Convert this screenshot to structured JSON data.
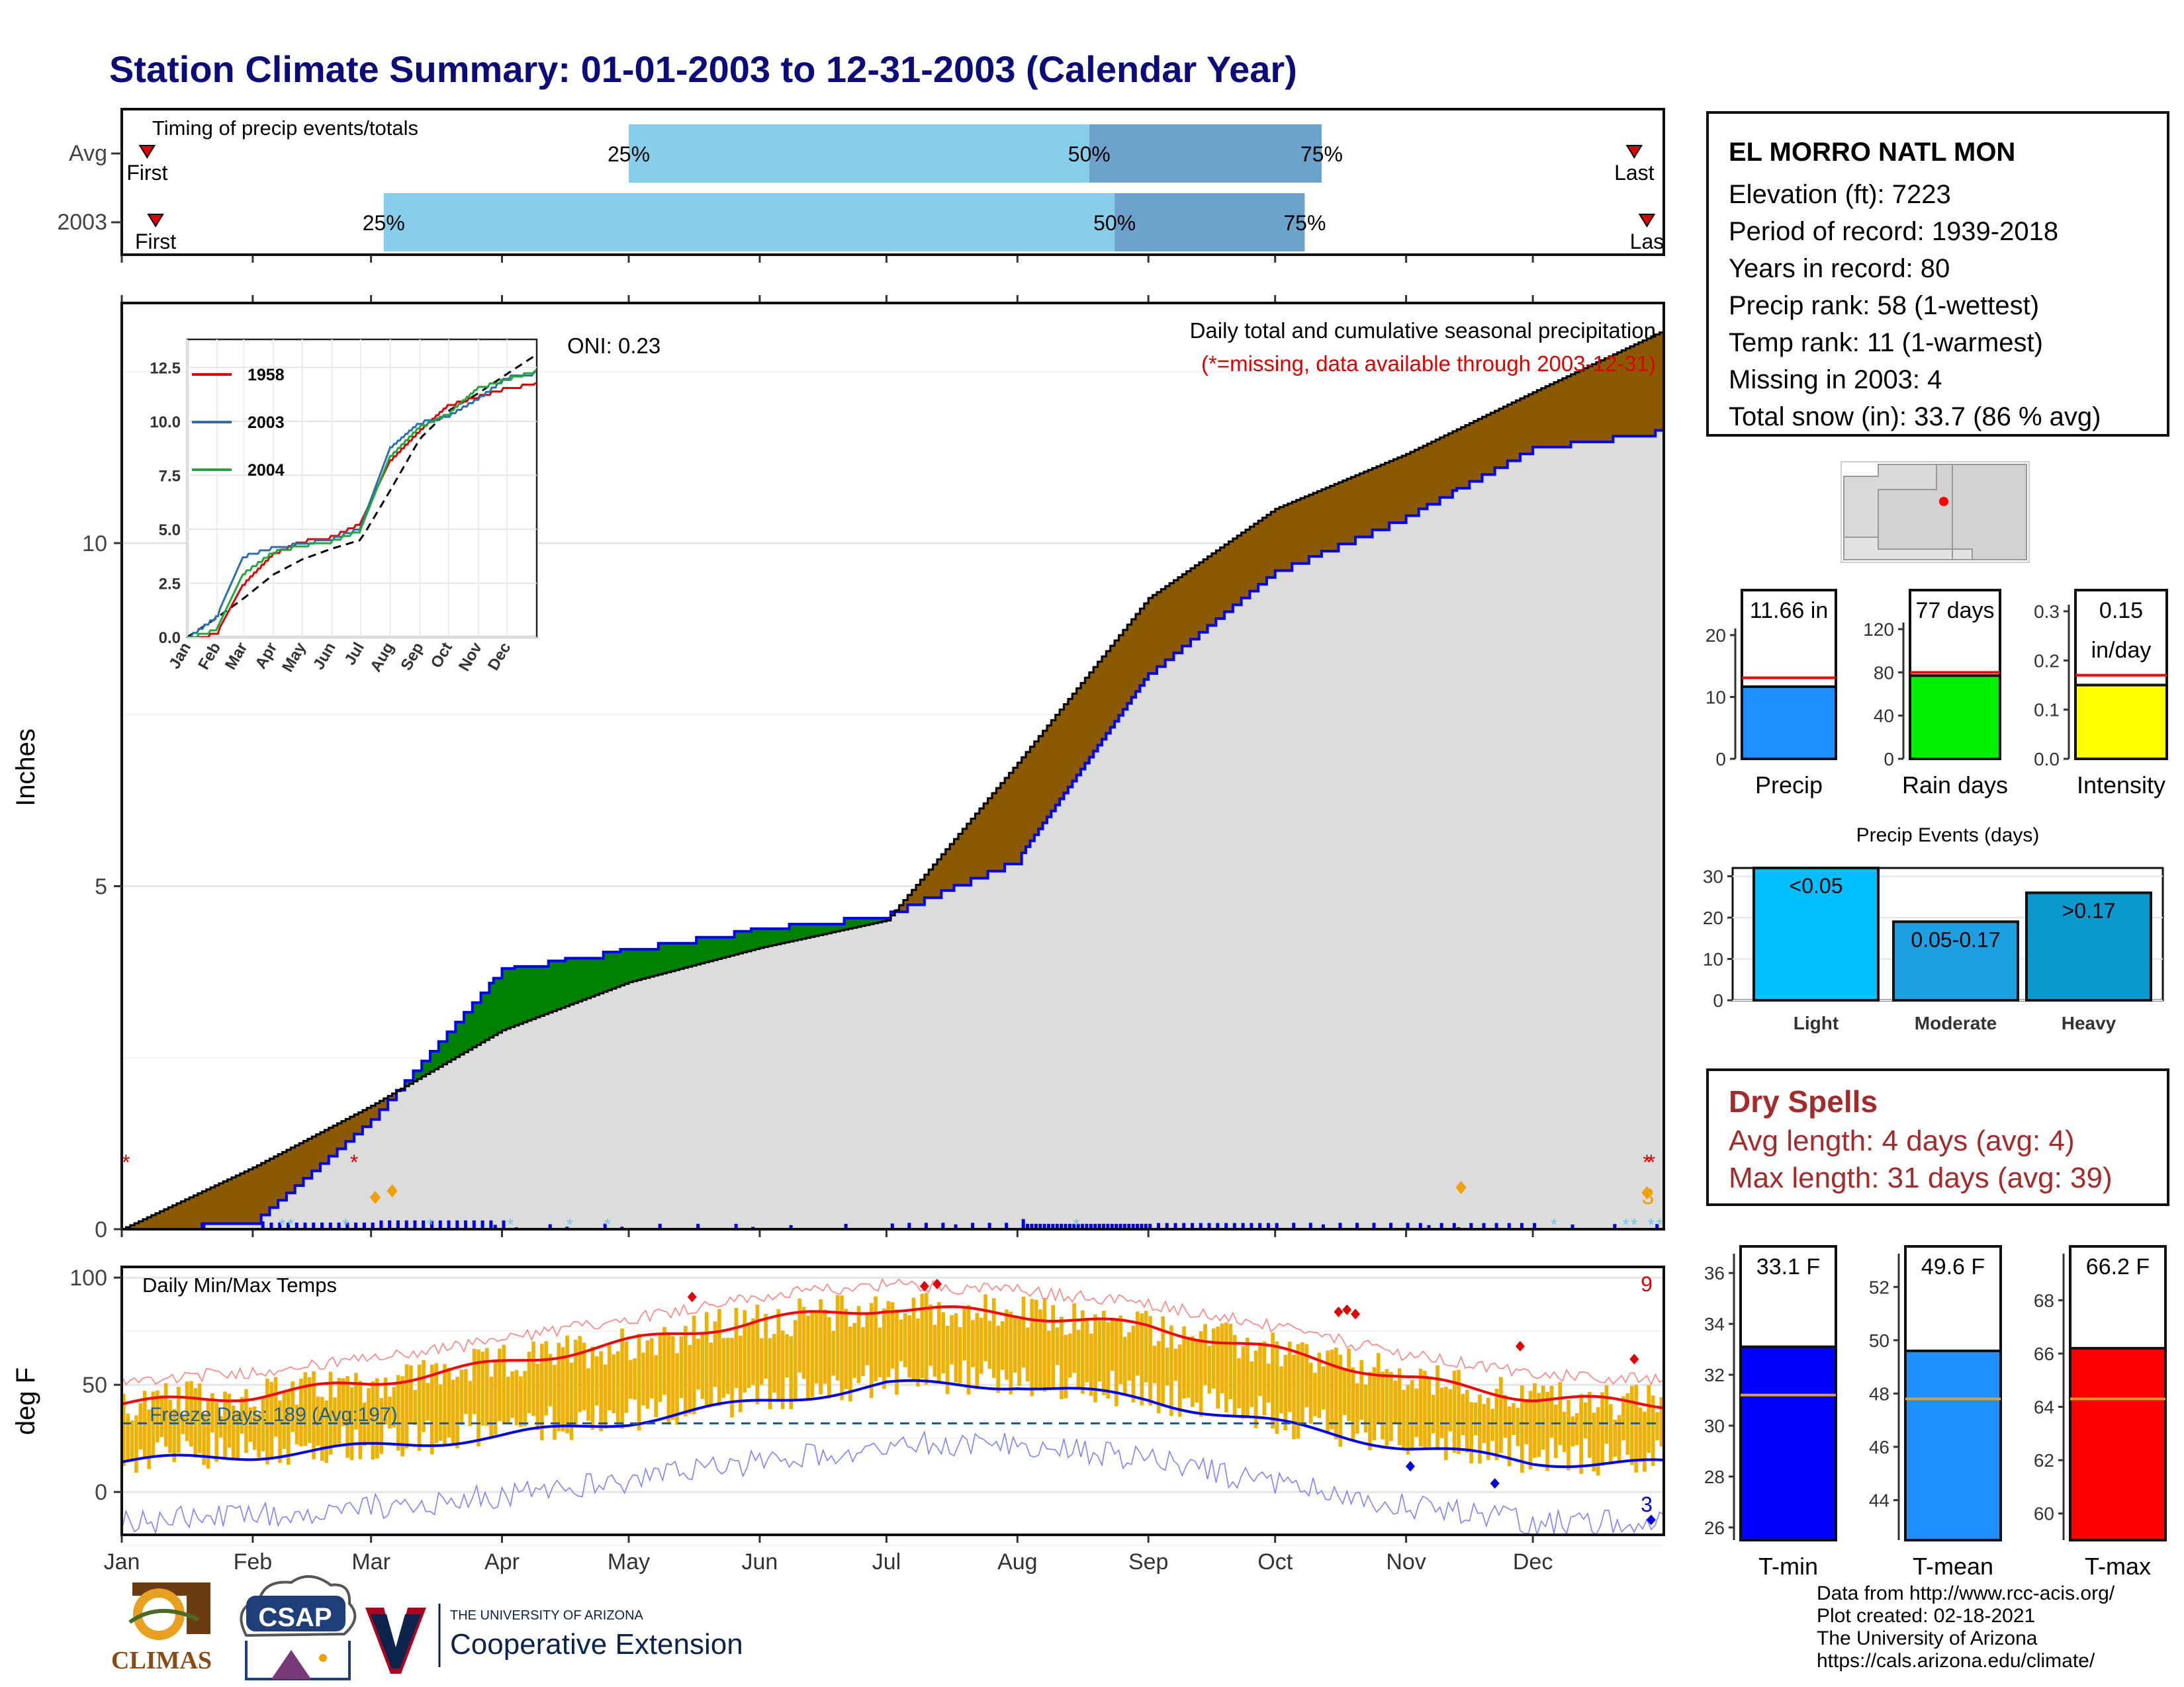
{
  "title": "Station Climate Summary: 01-01-2003 to 12-31-2003 (Calendar Year)",
  "station": {
    "name": "EL MORRO NATL MON",
    "lines": [
      "Elevation (ft): 7223",
      "Period of record: 1939-2018",
      "Years in record: 80",
      "Precip rank: 58 (1-wettest)",
      "Temp rank: 11 (1-warmest)",
      "Missing in 2003: 4",
      "Total snow (in): 33.7 (86 % avg)"
    ]
  },
  "colors": {
    "title": "#0b0b7a",
    "precip_cum": "#0000ff",
    "surplus": "#008000",
    "deficit": "#8b5a00",
    "avg_fill": "#dcdcdc",
    "timing_light": "#87ceeb",
    "timing_dark": "#6ba3cc",
    "tmax": "#ff0000",
    "tmin": "#0000ff",
    "temp_bar": "#f0b000"
  },
  "timing": {
    "label": "Timing of precip events/totals",
    "rows": [
      {
        "name": "Avg",
        "first": "First",
        "last": "Last",
        "p25": "25%",
        "p50": "50%",
        "p75": "75%"
      },
      {
        "name": "2003",
        "first": "First",
        "last": "Las",
        "p25": "25%",
        "p50": "50%",
        "p75": "75%"
      }
    ]
  },
  "precip_panel": {
    "ylabel": "Inches",
    "yticks": [
      "0",
      "5",
      "10"
    ],
    "note1": "Daily total and cumulative seasonal precipitation",
    "note2": "(*=missing, data available through 2003-12-31)",
    "oni": "ONI: 0.23",
    "snow_count": "3",
    "inset": {
      "yticks": [
        "0.0",
        "2.5",
        "5.0",
        "7.5",
        "10.0",
        "12.5"
      ],
      "months": [
        "Jan",
        "Feb",
        "Mar",
        "Apr",
        "May",
        "Jun",
        "Jul",
        "Aug",
        "Sep",
        "Oct",
        "Nov",
        "Dec"
      ],
      "legend": [
        "1958",
        "2003",
        "2004"
      ]
    }
  },
  "temp_panel": {
    "ylabel": "deg F",
    "label": "Daily Min/Max Temps",
    "yticks": [
      "0",
      "50",
      "100"
    ],
    "freeze": "Freeze Days: 189 (Avg:197)",
    "record_hi_count": "9",
    "record_lo_count": "3"
  },
  "months": [
    "Jan",
    "Feb",
    "Mar",
    "Apr",
    "May",
    "Jun",
    "Jul",
    "Aug",
    "Sep",
    "Oct",
    "Nov",
    "Dec"
  ],
  "summary_bars": {
    "precip": {
      "label": "Precip",
      "value_text": "11.66 in",
      "yticks": [
        "0",
        "10",
        "20"
      ]
    },
    "raindays": {
      "label": "Rain days",
      "value_text": "77 days",
      "yticks": [
        "0",
        "40",
        "80",
        "120"
      ]
    },
    "intensity": {
      "label": "Intensity",
      "value_text1": "0.15",
      "value_text2": "in/day",
      "yticks": [
        "0.0",
        "0.1",
        "0.2",
        "0.3"
      ]
    }
  },
  "events": {
    "title": "Precip Events (days)",
    "yticks": [
      "0",
      "10",
      "20",
      "30"
    ],
    "bars": [
      {
        "label": "Light",
        "text": "<0.05",
        "value": 32
      },
      {
        "label": "Moderate",
        "text": "0.05-0.17",
        "value": 19
      },
      {
        "label": "Heavy",
        "text": ">0.17",
        "value": 26
      }
    ]
  },
  "dry_spells": {
    "title": "Dry Spells",
    "avg": "Avg length: 4 days (avg: 4)",
    "max": "Max length: 31 days (avg: 39)"
  },
  "temp_summary": {
    "tmin": {
      "label": "T-min",
      "value_text": "33.1 F",
      "yticks": [
        "26",
        "28",
        "30",
        "32",
        "34",
        "36"
      ]
    },
    "tmean": {
      "label": "T-mean",
      "value_text": "49.6 F",
      "yticks": [
        "44",
        "46",
        "48",
        "50",
        "52"
      ]
    },
    "tmax": {
      "label": "T-max",
      "value_text": "66.2 F",
      "yticks": [
        "60",
        "62",
        "64",
        "66",
        "68"
      ]
    }
  },
  "footer": [
    "Data from http://www.rcc-acis.org/",
    "Plot created: 02-18-2021",
    "The University of Arizona",
    "https://cals.arizona.edu/climate/"
  ],
  "logos": {
    "climas": "CLIMAS",
    "csap": "CSAP",
    "ua_small": "THE UNIVERSITY OF ARIZONA",
    "ua_big": "Cooperative Extension"
  },
  "chart_data": [
    {
      "type": "area",
      "title": "Daily total and cumulative seasonal precipitation",
      "ylabel": "Inches",
      "ylim": [
        0,
        13.5
      ],
      "x": [
        "Jan",
        "Feb",
        "Mar",
        "Apr",
        "May",
        "Jun",
        "Jul",
        "Aug",
        "Sep",
        "Oct",
        "Nov",
        "Dec",
        "Dec31"
      ],
      "series": [
        {
          "name": "2003",
          "values": [
            0.05,
            0.1,
            1.6,
            3.8,
            4.1,
            4.4,
            4.6,
            5.4,
            8.1,
            9.6,
            10.4,
            11.4,
            11.66
          ]
        },
        {
          "name": "Avg",
          "values": [
            0.0,
            0.9,
            1.8,
            2.9,
            3.6,
            4.1,
            4.5,
            6.8,
            9.2,
            10.5,
            11.3,
            12.2,
            13.1
          ]
        }
      ]
    },
    {
      "type": "line",
      "title": "Daily Min/Max Temps",
      "ylabel": "deg F",
      "ylim": [
        -20,
        105
      ],
      "x": [
        "Jan",
        "Feb",
        "Mar",
        "Apr",
        "May",
        "Jun",
        "Jul",
        "Aug",
        "Sep",
        "Oct",
        "Nov",
        "Dec",
        "Dec31"
      ],
      "series": [
        {
          "name": "Avg max",
          "values": [
            41,
            45,
            51,
            60,
            70,
            80,
            86,
            83,
            77,
            66,
            53,
            44,
            41
          ]
        },
        {
          "name": "Avg min",
          "values": [
            14,
            17,
            21,
            26,
            33,
            42,
            50,
            50,
            43,
            32,
            21,
            14,
            13
          ]
        }
      ]
    },
    {
      "type": "bar",
      "categories": [
        "Precip",
        "Rain days",
        "Intensity"
      ],
      "series": [
        {
          "name": "2003",
          "values": [
            11.66,
            77,
            0.15
          ]
        },
        {
          "name": "Avg",
          "values": [
            13.1,
            80,
            0.17
          ]
        }
      ]
    },
    {
      "type": "bar",
      "title": "Precip Events (days)",
      "categories": [
        "Light",
        "Moderate",
        "Heavy"
      ],
      "values": [
        32,
        19,
        26
      ],
      "ylim": [
        0,
        32
      ]
    },
    {
      "type": "bar",
      "categories": [
        "T-min",
        "T-mean",
        "T-max"
      ],
      "series": [
        {
          "name": "2003",
          "values": [
            33.1,
            49.6,
            66.2
          ]
        },
        {
          "name": "Avg",
          "values": [
            31.2,
            47.8,
            64.3
          ]
        }
      ]
    }
  ]
}
